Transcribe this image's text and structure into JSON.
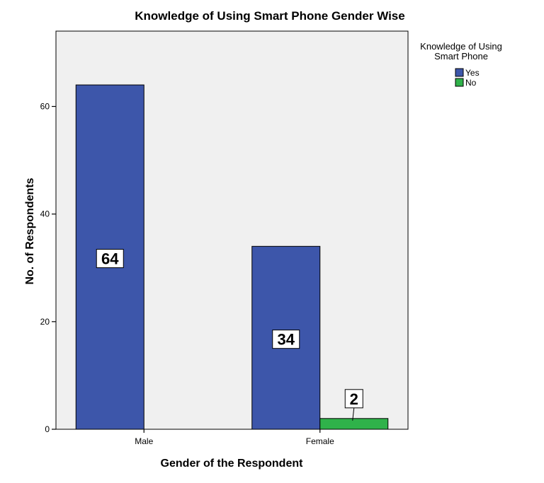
{
  "chart_data": {
    "type": "bar",
    "title": "Knowledge of Using Smart Phone Gender Wise",
    "xlabel": "Gender of the Respondent",
    "ylabel": "No. of Respondents",
    "categories": [
      "Male",
      "Female"
    ],
    "ylim": [
      0,
      74
    ],
    "yticks": [
      0,
      20,
      40,
      60
    ],
    "grid": false,
    "legend": {
      "title_lines": [
        "Knowledge of Using",
        "Smart Phone"
      ],
      "placement": "right-top"
    },
    "series": [
      {
        "name": "Yes",
        "color": "#3d56aa",
        "values": [
          64,
          34
        ]
      },
      {
        "name": "No",
        "color": "#2fb24a",
        "values": [
          null,
          2
        ]
      }
    ],
    "data_labels": [
      {
        "category": "Male",
        "series": "Yes",
        "text": "64"
      },
      {
        "category": "Female",
        "series": "Yes",
        "text": "34"
      },
      {
        "category": "Female",
        "series": "No",
        "text": "2"
      }
    ],
    "plot_background": "#f0f0f0"
  }
}
